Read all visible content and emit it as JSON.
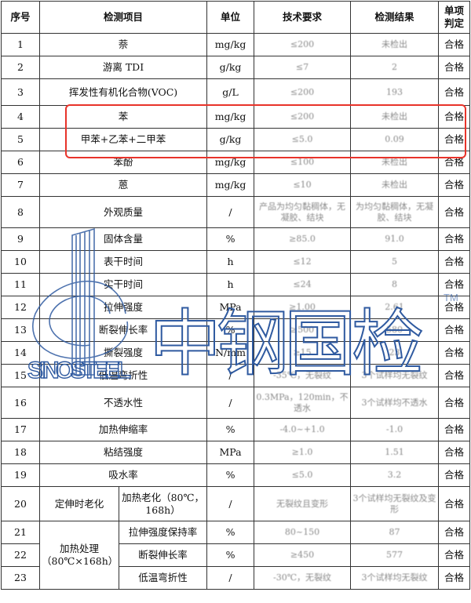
{
  "headers": {
    "no": "序号",
    "item": "检测项目",
    "unit": "单位",
    "req": "技术要求",
    "result": "检测结果",
    "verdict": "单项判定"
  },
  "rows": [
    {
      "no": "1",
      "item": "萘",
      "unit": "mg/kg",
      "req": "≤200",
      "result": "未检出",
      "verdict": "合格"
    },
    {
      "no": "2",
      "item": "游离 TDI",
      "unit": "g/kg",
      "req": "≤7",
      "result": "2",
      "verdict": "合格"
    },
    {
      "no": "3",
      "item": "挥发性有机化合物(VOC)",
      "unit": "g/L",
      "req": "≤200",
      "result": "193",
      "verdict": "合格"
    },
    {
      "no": "4",
      "item": "苯",
      "unit": "mg/kg",
      "req": "≤200",
      "result": "未检出",
      "verdict": "合格"
    },
    {
      "no": "5",
      "item": "甲苯+乙苯+二甲苯",
      "unit": "g/kg",
      "req": "≤5.0",
      "result": "0.09",
      "verdict": "合格"
    },
    {
      "no": "6",
      "item": "苯酚",
      "unit": "mg/kg",
      "req": "≤100",
      "result": "未检出",
      "verdict": "合格"
    },
    {
      "no": "7",
      "item": "蒽",
      "unit": "mg/kg",
      "req": "≤10",
      "result": "未检出",
      "verdict": "合格"
    },
    {
      "no": "8",
      "item": "外观质量",
      "unit": "/",
      "req": "产品为均匀黏稠体，无凝胶、结块",
      "result": "为均匀黏稠体，无凝胶、结块",
      "verdict": "合格"
    },
    {
      "no": "9",
      "item": "固体含量",
      "unit": "%",
      "req": "≥85.0",
      "result": "91.0",
      "verdict": "合格"
    },
    {
      "no": "10",
      "item": "表干时间",
      "unit": "h",
      "req": "≤12",
      "result": "5",
      "verdict": "合格"
    },
    {
      "no": "11",
      "item": "实干时间",
      "unit": "h",
      "req": "≤24",
      "result": "8",
      "verdict": "合格"
    },
    {
      "no": "12",
      "item": "拉伸强度",
      "unit": "MPa",
      "req": "≥1.00",
      "result": "2.61",
      "verdict": "合格"
    },
    {
      "no": "13",
      "item": "断裂伸长率",
      "unit": "%",
      "req": "≥500",
      "result": "580",
      "verdict": "合格"
    },
    {
      "no": "14",
      "item": "撕裂强度",
      "unit": "N/mm",
      "req": "≥15",
      "result": "23",
      "verdict": "合格"
    },
    {
      "no": "15",
      "item": "低温弯折性",
      "unit": "/",
      "req": "-35℃，无裂纹",
      "result": "3个试样均无裂纹",
      "verdict": "合格"
    },
    {
      "no": "16",
      "item": "不透水性",
      "unit": "/",
      "req": "0.3MPa，120min，不透水",
      "result": "3个试样均不透水",
      "verdict": "合格"
    },
    {
      "no": "17",
      "item": "加热伸缩率",
      "unit": "%",
      "req": "-4.0~+1.0",
      "result": "-1.0",
      "verdict": "合格"
    },
    {
      "no": "18",
      "item": "粘结强度",
      "unit": "MPa",
      "req": "≥1.0",
      "result": "1.51",
      "verdict": "合格"
    },
    {
      "no": "19",
      "item": "吸水率",
      "unit": "%",
      "req": "≤5.0",
      "result": "3.2",
      "verdict": "合格"
    },
    {
      "no": "20",
      "group": "定伸时老化",
      "item": "加热老化（80℃，168h）",
      "unit": "/",
      "req": "无裂纹且变形",
      "result": "3个试样均无裂纹及变形",
      "verdict": "合格"
    },
    {
      "no": "21",
      "group": "加热处理（80℃×168h）",
      "item": "拉伸强度保持率",
      "unit": "%",
      "req": "80~150",
      "result": "87",
      "verdict": "合格"
    },
    {
      "no": "22",
      "item": "断裂伸长率",
      "unit": "%",
      "req": "≥450",
      "result": "577",
      "verdict": "合格"
    },
    {
      "no": "23",
      "item": "低温弯折性",
      "unit": "/",
      "req": "-30℃，无裂纹",
      "result": "3个试样均无裂纹",
      "verdict": "合格"
    }
  ],
  "highlight_color": "#e8332a",
  "watermark": {
    "cn": "中钢国检",
    "en": "SINOSTEEL",
    "tm": "TM",
    "color": "#2f5aa0"
  }
}
